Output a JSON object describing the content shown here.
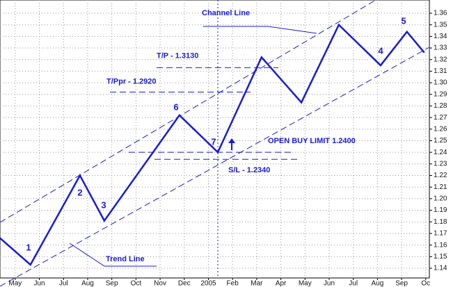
{
  "chart_data": {
    "type": "line",
    "x": [
      -0.63,
      0.63,
      2.68,
      3.69,
      6.8,
      8.39,
      10.2,
      11.85,
      13.4,
      15.13,
      16.22,
      16.94
    ],
    "series": [
      {
        "color": "#1a1adc",
        "values": [
          1.166,
          1.143,
          1.22,
          1.181,
          1.272,
          1.24,
          1.322,
          1.283,
          1.35,
          1.315,
          1.344,
          1.326
        ]
      }
    ],
    "xlim": [
      -0.63,
      17.15
    ],
    "xticks": [
      {
        "value": 0,
        "label": "May"
      },
      {
        "value": 1,
        "label": "Jun"
      },
      {
        "value": 2,
        "label": "Jul"
      },
      {
        "value": 3,
        "label": "Aug"
      },
      {
        "value": 4,
        "label": "Sep"
      },
      {
        "value": 5,
        "label": "Oct"
      },
      {
        "value": 6,
        "label": "Nov"
      },
      {
        "value": 7,
        "label": "Dec"
      },
      {
        "value": 8,
        "label": "2005"
      },
      {
        "value": 9,
        "label": "Feb"
      },
      {
        "value": 10,
        "label": "Mar"
      },
      {
        "value": 11,
        "label": "Apr"
      },
      {
        "value": 12,
        "label": "May"
      },
      {
        "value": 13,
        "label": "Jun"
      },
      {
        "value": 14,
        "label": "Jul"
      },
      {
        "value": 15,
        "label": "Aug"
      },
      {
        "value": 16,
        "label": "Sep"
      },
      {
        "value": 17,
        "label": "Oc"
      }
    ],
    "ylim": [
      1.1316,
      1.3714
    ],
    "yticks": [
      1.14,
      1.15,
      1.16,
      1.17,
      1.18,
      1.19,
      {
        "value": 1.2,
        "label": "1.20"
      },
      1.21,
      1.22,
      1.23,
      1.24,
      1.25,
      1.26,
      1.27,
      1.28,
      1.29,
      {
        "value": 1.3,
        "label": "1.30"
      },
      1.31,
      1.32,
      1.33,
      1.34,
      1.35,
      1.36
    ],
    "grid": true,
    "levels": [
      {
        "label": "T/P - 1.3130",
        "value": 1.313
      },
      {
        "label": "T/Ppr - 1.2920",
        "value": 1.292
      },
      {
        "label": "OPEN BUY LIMIT 1.2400",
        "value": 1.24
      },
      {
        "label": "S/L - 1.2340",
        "value": 1.234
      }
    ],
    "annotations": [
      "Channel Line",
      "Trend Line"
    ],
    "wave_labels": [
      1,
      2,
      3,
      6,
      7,
      4,
      5
    ]
  }
}
